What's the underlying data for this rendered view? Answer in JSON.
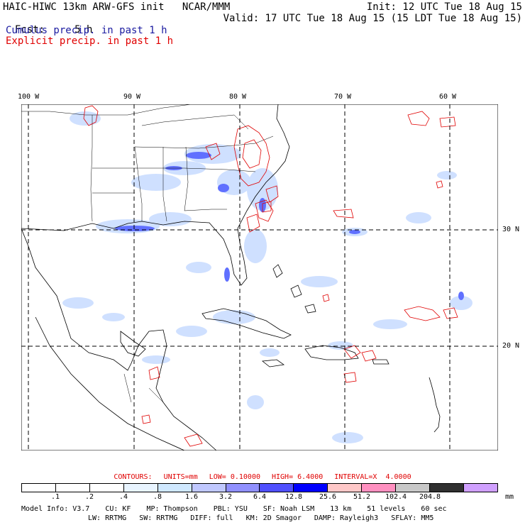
{
  "header": {
    "title": "HAIC-HIWC 13km ARW-GFS init   NCAR/MMM",
    "fcst_label": "Fcst:",
    "fcst_value": "5 h",
    "init": "Init: 12 UTC Tue 18 Aug 15",
    "valid": "Valid: 17 UTC Tue 18 Aug 15 (15 LDT Tue 18 Aug 15)",
    "cumulus": "Cumulus precip. in past 1 h",
    "explicit": "Explicit precip. in past 1 h"
  },
  "map": {
    "lon_labels": [
      "100 W",
      "90 W",
      "80 W",
      "70 W",
      "60 W"
    ],
    "lat_labels": [
      "30 N",
      "20 N"
    ],
    "colors": {
      "coast": "#000000",
      "grid": "#000000",
      "explicit_contour": "#e00000",
      "cumulus_light": "#cfe0ff",
      "cumulus_mid": "#8fa8ff",
      "cumulus_heavy": "#3040ff"
    }
  },
  "contours": {
    "title": "CONTOURS:",
    "units": "UNITS=mm",
    "low": "LOW= 0.10000",
    "high": "HIGH= 6.4000",
    "interval": "INTERVAL=X  4.0000"
  },
  "colorbar": {
    "units": "mm",
    "ticks": [
      ".1",
      ".2",
      ".4",
      ".8",
      "1.6",
      "3.2",
      "6.4",
      "12.8",
      "25.6",
      "51.2",
      "102.4",
      "204.8"
    ],
    "colors": [
      "#ffffff",
      "#ffffff",
      "#ffffff",
      "#e8f4ff",
      "#cfe8ff",
      "#c0c8ff",
      "#9090ff",
      "#5050ff",
      "#0000ff",
      "#ffc8c8",
      "#ff90c0",
      "#c8c8c8",
      "#303030",
      "#d0a0ff"
    ]
  },
  "model_info": {
    "line1": [
      "Model Info: V3.7",
      "CU: KF",
      "MP: Thompson",
      "PBL: YSU",
      "SF: Noah LSM",
      "13 km",
      "51 levels",
      "60 sec"
    ],
    "line2": [
      "LW: RRTMG",
      "SW: RRTMG",
      "DIFF: full",
      "KM: 2D Smagor",
      "DAMP: Rayleigh3",
      "SFLAY: MM5"
    ]
  }
}
